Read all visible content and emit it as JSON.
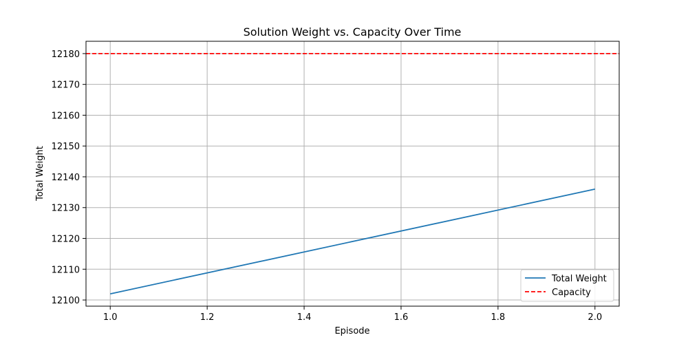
{
  "chart_data": {
    "type": "line",
    "title": "Solution Weight vs. Capacity Over Time",
    "xlabel": "Episode",
    "ylabel": "Total Weight",
    "xlim": [
      0.95,
      2.05
    ],
    "ylim": [
      12098,
      12184
    ],
    "xticks": [
      1.0,
      1.2,
      1.4,
      1.6,
      1.8,
      2.0
    ],
    "xtick_labels": [
      "1.0",
      "1.2",
      "1.4",
      "1.6",
      "1.8",
      "2.0"
    ],
    "yticks": [
      12100,
      12110,
      12120,
      12130,
      12140,
      12150,
      12160,
      12170,
      12180
    ],
    "ytick_labels": [
      "12100",
      "12110",
      "12120",
      "12130",
      "12140",
      "12150",
      "12160",
      "12170",
      "12180"
    ],
    "grid": true,
    "legend_position": "lower-right",
    "series": [
      {
        "name": "Total Weight",
        "x": [
          1,
          2
        ],
        "values": [
          12102,
          12136
        ],
        "color": "#1f77b4",
        "style": "solid"
      }
    ],
    "reference_lines": [
      {
        "name": "Capacity",
        "y": 12180,
        "color": "#ff0000",
        "style": "dashed"
      }
    ]
  }
}
